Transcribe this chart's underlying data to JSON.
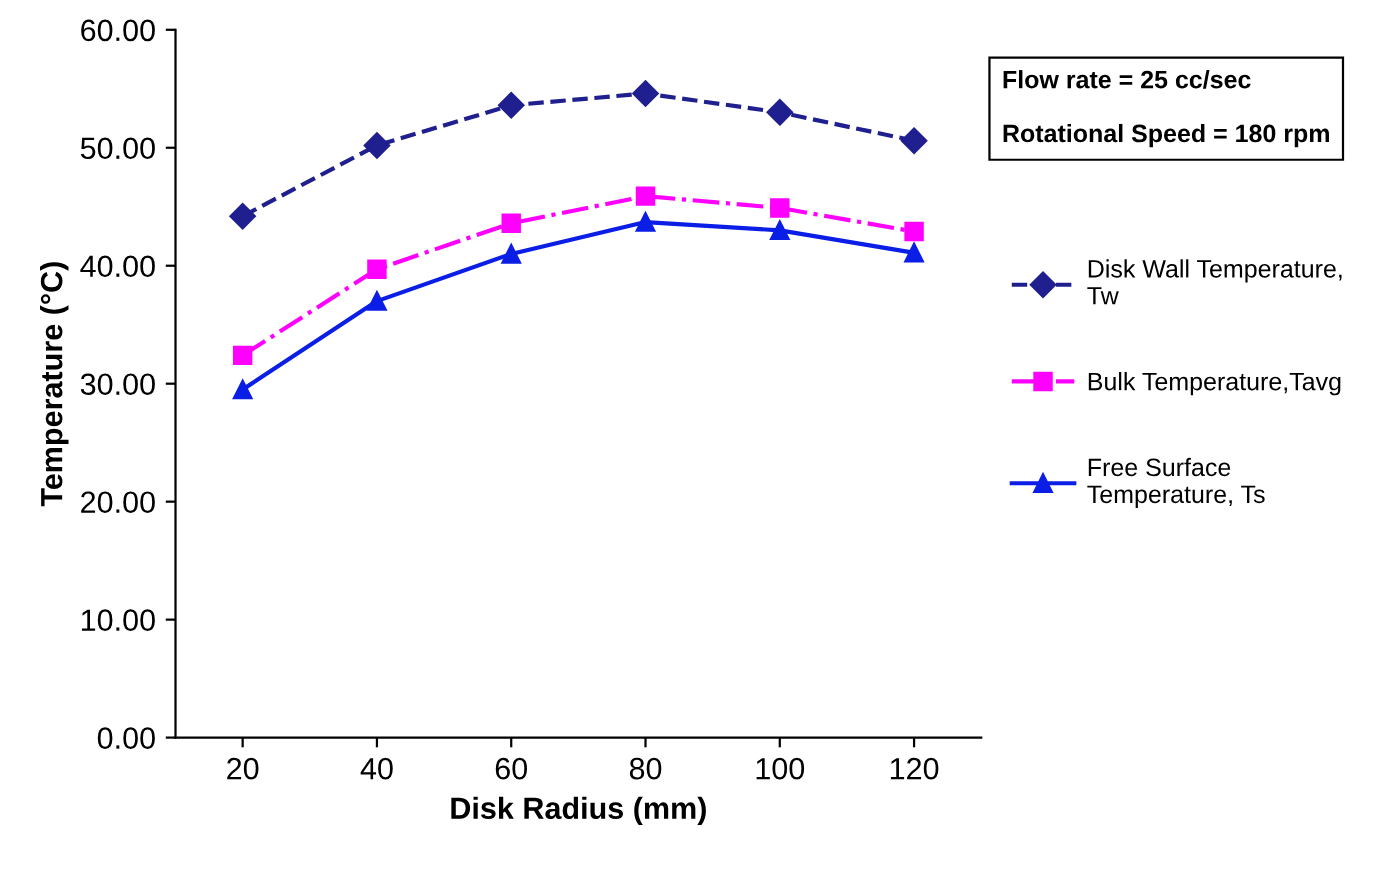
{
  "chart_data": {
    "type": "line",
    "xlabel": "Disk Radius (mm)",
    "ylabel": "Temperature (°C)",
    "categories": [
      "20",
      "40",
      "60",
      "80",
      "100",
      "120"
    ],
    "ylim": [
      0,
      60
    ],
    "yticks": [
      {
        "value": 0,
        "label": "0.00"
      },
      {
        "value": 10,
        "label": "10.00"
      },
      {
        "value": 20,
        "label": "20.00"
      },
      {
        "value": 30,
        "label": "30.00"
      },
      {
        "value": 40,
        "label": "40.00"
      },
      {
        "value": 50,
        "label": "50.00"
      },
      {
        "value": 60,
        "label": "60.00"
      }
    ],
    "series": [
      {
        "name": "Disk Wall Temperature, Tw",
        "color": "#1f1f8f",
        "marker": "diamond",
        "line_style": "dashed",
        "values": [
          44.2,
          50.2,
          53.6,
          54.6,
          53.0,
          50.6
        ]
      },
      {
        "name": "Bulk Temperature,Tavg",
        "color": "#ff00ff",
        "marker": "square",
        "line_style": "dashdot",
        "values": [
          32.4,
          39.7,
          43.6,
          45.9,
          44.9,
          42.9
        ]
      },
      {
        "name": "Free Surface Temperature, Ts",
        "color": "#0a1ee6",
        "marker": "triangle",
        "line_style": "solid",
        "values": [
          29.5,
          37.0,
          41.0,
          43.7,
          43.0,
          41.1
        ]
      }
    ],
    "annotations": [
      "Flow rate = 25 cc/sec",
      "Rotational Speed = 180 rpm"
    ],
    "legend": "right",
    "grid": false
  }
}
